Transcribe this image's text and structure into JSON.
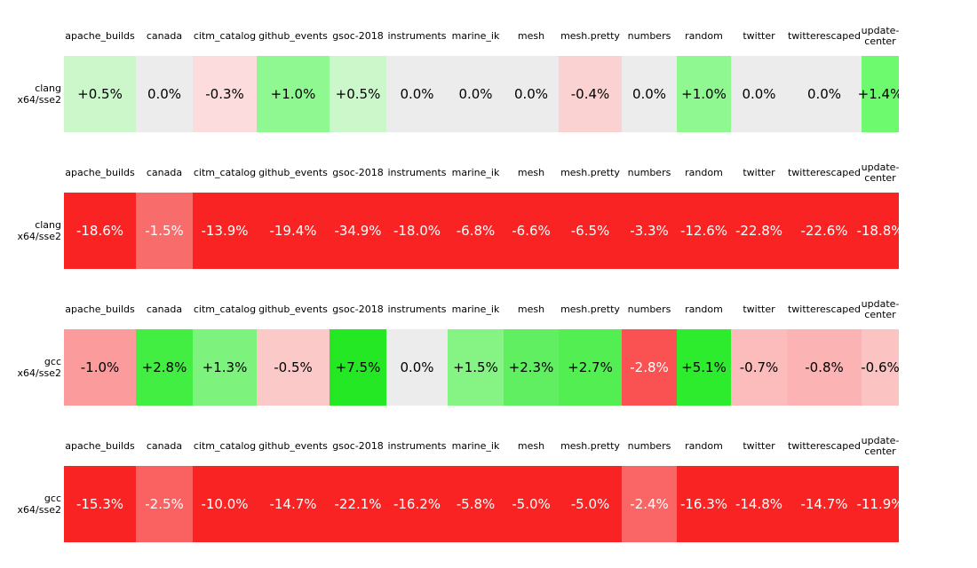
{
  "chart_data": {
    "type": "heatmap",
    "value_unit": "percent_change",
    "zero_color": "#ececec",
    "positive_color_scale": "green (brighter = larger gain)",
    "negative_color_scale": "red (deeper = larger loss)",
    "columns": [
      {
        "label": "apache_builds",
        "header_lines": [
          "apache_builds"
        ]
      },
      {
        "label": "canada",
        "header_lines": [
          "canada"
        ]
      },
      {
        "label": "citm_catalog",
        "header_lines": [
          "citm_catalog"
        ]
      },
      {
        "label": "github_events",
        "header_lines": [
          "github_events"
        ]
      },
      {
        "label": "gsoc-2018",
        "header_lines": [
          "gsoc-2018"
        ]
      },
      {
        "label": "instruments",
        "header_lines": [
          "instruments"
        ]
      },
      {
        "label": "marine_ik",
        "header_lines": [
          "marine_ik"
        ]
      },
      {
        "label": "mesh",
        "header_lines": [
          "mesh"
        ]
      },
      {
        "label": "mesh.pretty",
        "header_lines": [
          "mesh.pretty"
        ]
      },
      {
        "label": "numbers",
        "header_lines": [
          "numbers"
        ]
      },
      {
        "label": "random",
        "header_lines": [
          "random"
        ]
      },
      {
        "label": "twitter",
        "header_lines": [
          "twitter"
        ]
      },
      {
        "label": "twitterescaped",
        "header_lines": [
          "twitterescaped"
        ]
      },
      {
        "label": "update-center",
        "header_lines": [
          "update-",
          "center"
        ]
      }
    ],
    "rows": [
      {
        "label": "clang x64/sse2",
        "label_lines": [
          "clang",
          "x64/sse2"
        ],
        "values": [
          0.5,
          0.0,
          -0.3,
          1.0,
          0.5,
          0.0,
          0.0,
          0.0,
          -0.4,
          0.0,
          1.0,
          0.0,
          0.0,
          1.4
        ],
        "display": [
          "+0.5%",
          "0.0%",
          "-0.3%",
          "+1.0%",
          "+0.5%",
          "0.0%",
          "0.0%",
          "0.0%",
          "-0.4%",
          "0.0%",
          "+1.0%",
          "0.0%",
          "0.0%",
          "+1.4%"
        ],
        "cell_colors": [
          "#cbf7cb",
          "#ececec",
          "#fcdcdc",
          "#90f890",
          "#cbf7cb",
          "#ececec",
          "#ececec",
          "#ececec",
          "#fbd2d2",
          "#ececec",
          "#90f890",
          "#ececec",
          "#ececec",
          "#6efa6e"
        ],
        "text_colors": [
          "#000000",
          "#000000",
          "#000000",
          "#000000",
          "#000000",
          "#000000",
          "#000000",
          "#000000",
          "#000000",
          "#000000",
          "#000000",
          "#000000",
          "#000000",
          "#000000"
        ]
      },
      {
        "label": "clang x64/sse2",
        "label_lines": [
          "clang",
          "x64/sse2"
        ],
        "values": [
          -18.6,
          -1.5,
          -13.9,
          -19.4,
          -34.9,
          -18.0,
          -6.8,
          -6.6,
          -6.5,
          -3.3,
          -12.6,
          -22.8,
          -22.6,
          -18.8
        ],
        "display": [
          "-18.6%",
          "-1.5%",
          "-13.9%",
          "-19.4%",
          "-34.9%",
          "-18.0%",
          "-6.8%",
          "-6.6%",
          "-6.5%",
          "-3.3%",
          "-12.6%",
          "-22.8%",
          "-22.6%",
          "-18.8%"
        ],
        "cell_colors": [
          "#fa2323",
          "#f96c6c",
          "#fa2323",
          "#fa2323",
          "#fa2323",
          "#fa2323",
          "#fa2323",
          "#fa2323",
          "#fa2323",
          "#fa2323",
          "#fa2323",
          "#fa2323",
          "#fa2323",
          "#fa2323"
        ],
        "text_colors": [
          "#ffffff",
          "#ffffff",
          "#ffffff",
          "#ffffff",
          "#ffffff",
          "#ffffff",
          "#ffffff",
          "#ffffff",
          "#ffffff",
          "#ffffff",
          "#ffffff",
          "#ffffff",
          "#ffffff",
          "#ffffff"
        ]
      },
      {
        "label": "gcc x64/sse2",
        "label_lines": [
          "gcc",
          "x64/sse2"
        ],
        "values": [
          -1.0,
          2.8,
          1.3,
          -0.5,
          7.5,
          0.0,
          1.5,
          2.3,
          2.7,
          -2.8,
          5.1,
          -0.7,
          -0.8,
          -0.6
        ],
        "display": [
          "-1.0%",
          "+2.8%",
          "+1.3%",
          "-0.5%",
          "+7.5%",
          "0.0%",
          "+1.5%",
          "+2.3%",
          "+2.7%",
          "-2.8%",
          "+5.1%",
          "-0.7%",
          "-0.8%",
          "-0.6%"
        ],
        "cell_colors": [
          "#fb9b9b",
          "#41ee41",
          "#7df27d",
          "#fcc9c9",
          "#24e824",
          "#ececec",
          "#85f485",
          "#60ef60",
          "#52ee52",
          "#fa5252",
          "#2deb2d",
          "#fcbcbc",
          "#fbb3b3",
          "#fcc3c3"
        ],
        "text_colors": [
          "#000000",
          "#000000",
          "#000000",
          "#000000",
          "#000000",
          "#000000",
          "#000000",
          "#000000",
          "#000000",
          "#ffffff",
          "#000000",
          "#000000",
          "#000000",
          "#000000"
        ]
      },
      {
        "label": "gcc x64/sse2",
        "label_lines": [
          "gcc",
          "x64/sse2"
        ],
        "values": [
          -15.3,
          -2.5,
          -10.0,
          -14.7,
          -22.1,
          -16.2,
          -5.8,
          -5.0,
          -5.0,
          -2.4,
          -16.3,
          -14.8,
          -14.7,
          -11.9
        ],
        "display": [
          "-15.3%",
          "-2.5%",
          "-10.0%",
          "-14.7%",
          "-22.1%",
          "-16.2%",
          "-5.8%",
          "-5.0%",
          "-5.0%",
          "-2.4%",
          "-16.3%",
          "-14.8%",
          "-14.7%",
          "-11.9%"
        ],
        "cell_colors": [
          "#fa2323",
          "#fa6161",
          "#fa2323",
          "#fa2323",
          "#fa2323",
          "#fa2323",
          "#fa2323",
          "#fa2323",
          "#fa2323",
          "#fa6666",
          "#fa2323",
          "#fa2323",
          "#fa2323",
          "#fa2323"
        ],
        "text_colors": [
          "#ffffff",
          "#ffffff",
          "#ffffff",
          "#ffffff",
          "#ffffff",
          "#ffffff",
          "#ffffff",
          "#ffffff",
          "#ffffff",
          "#ffffff",
          "#ffffff",
          "#ffffff",
          "#ffffff",
          "#ffffff"
        ]
      }
    ]
  }
}
